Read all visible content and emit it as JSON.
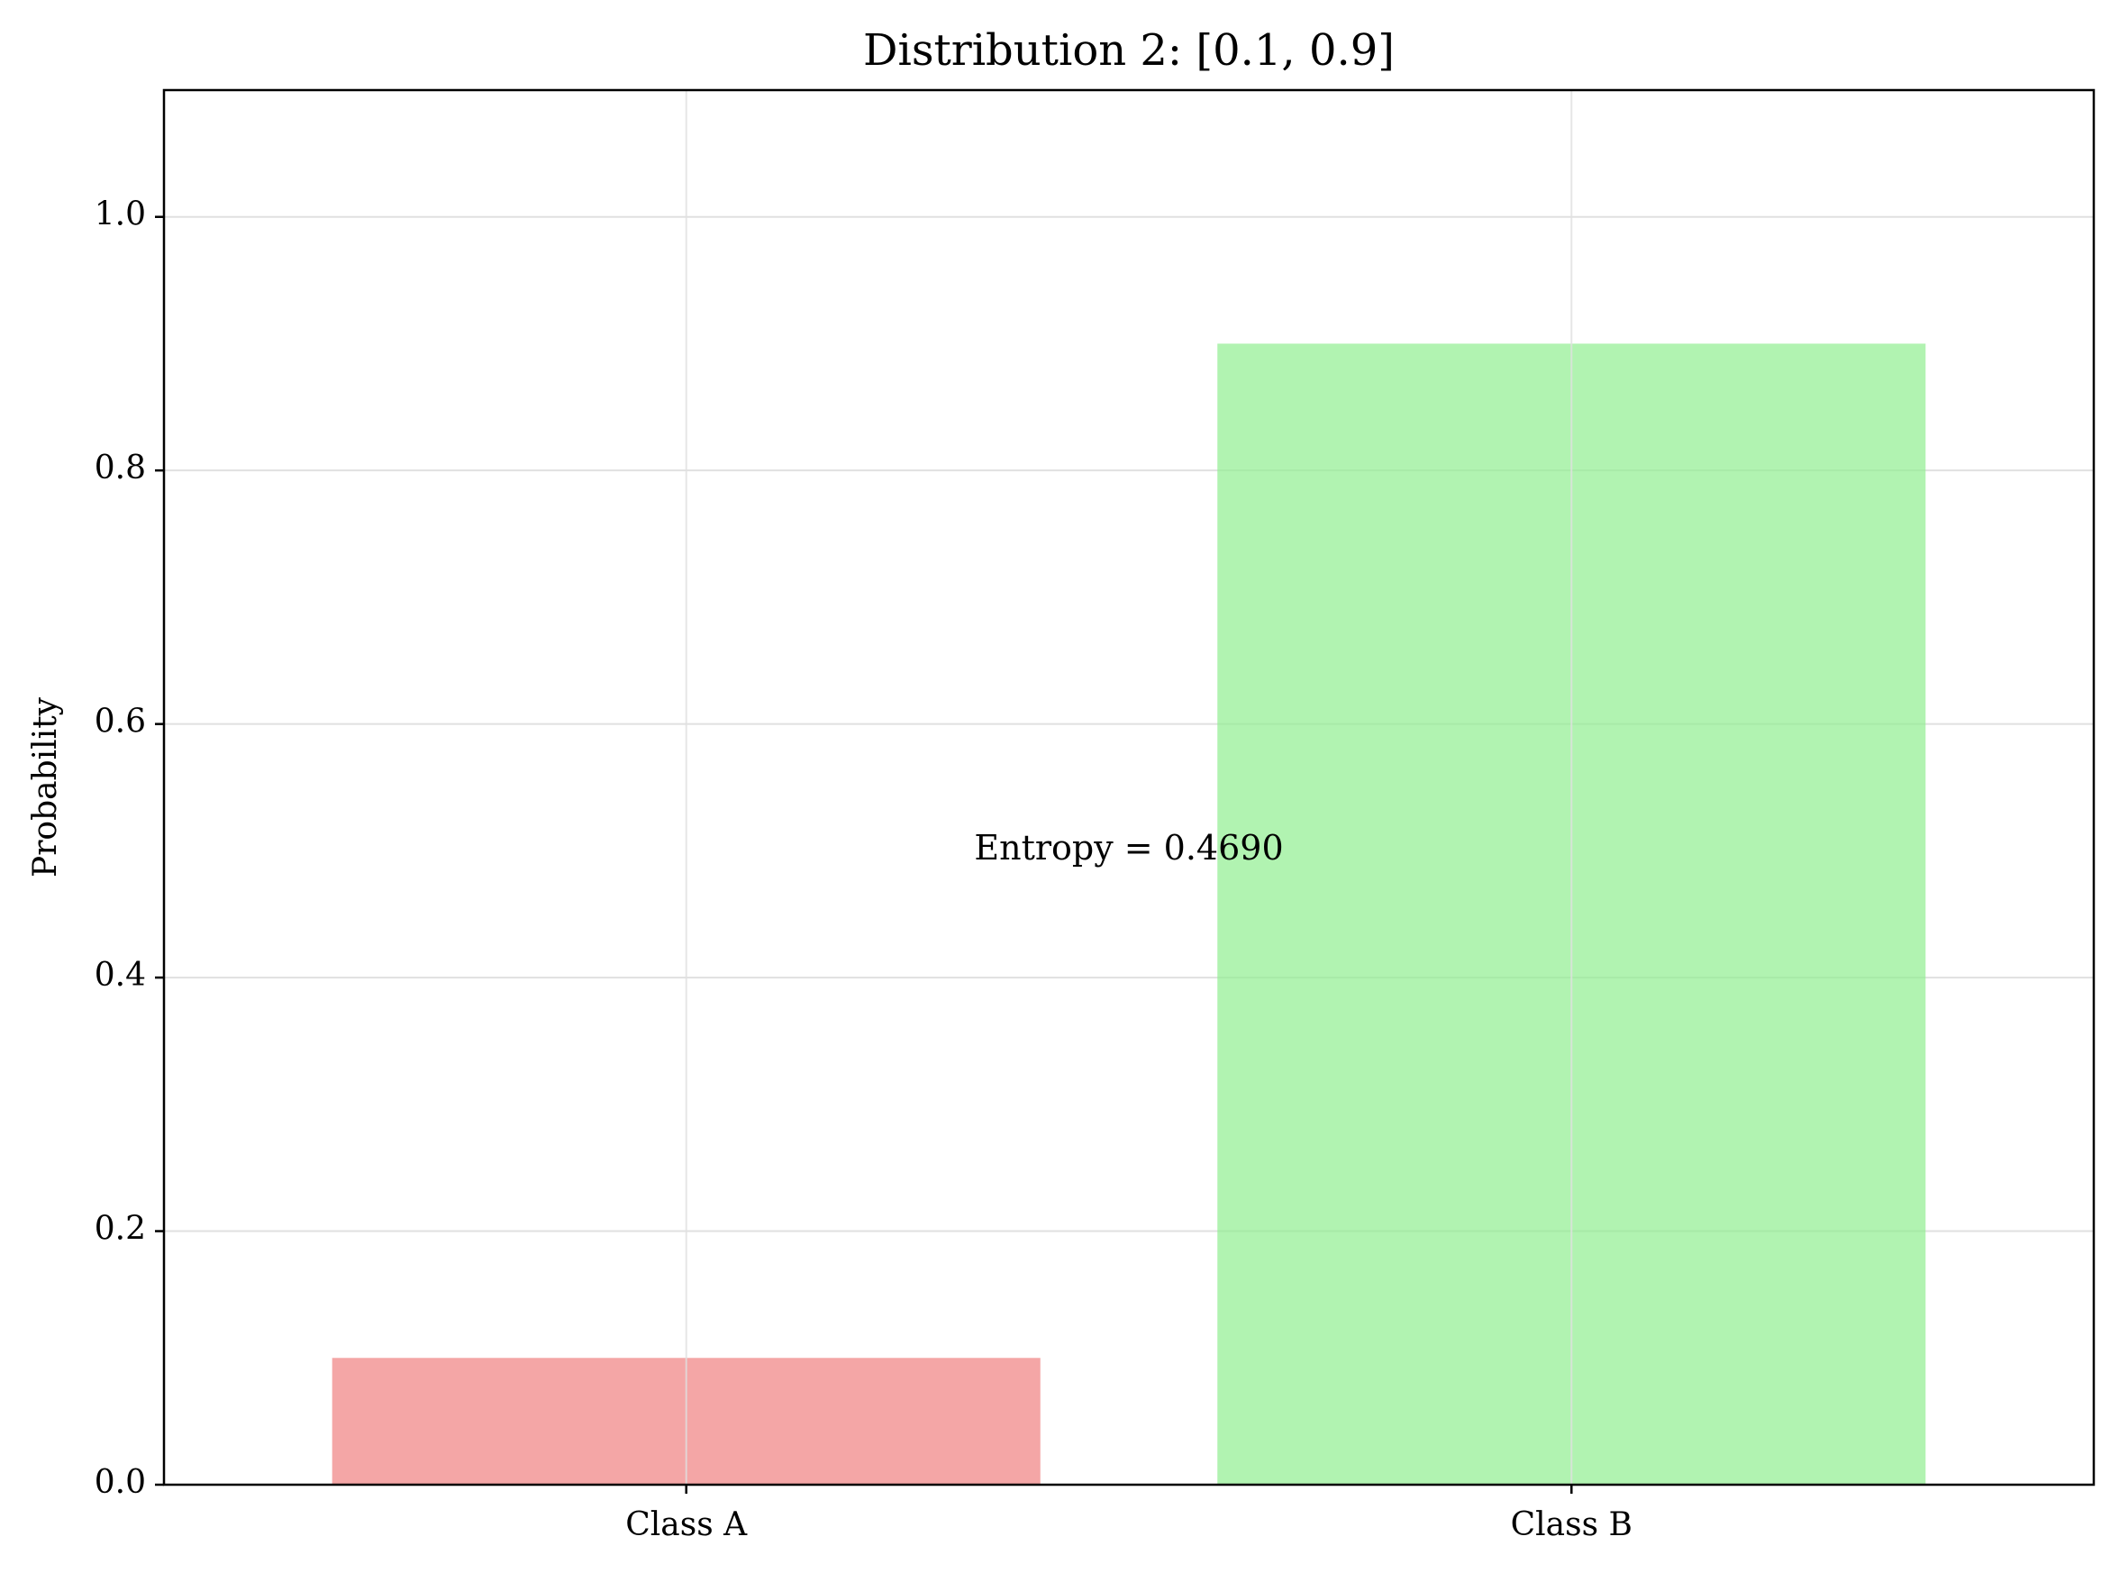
{
  "chart_data": {
    "type": "bar",
    "title": "Distribution 2: [0.1, 0.9]",
    "xlabel": "",
    "ylabel": "Probability",
    "categories": [
      "Class A",
      "Class B"
    ],
    "values": [
      0.1,
      0.9
    ],
    "colors": [
      "#f08080",
      "#90ee90"
    ],
    "bar_opacity": 0.7,
    "ylim": [
      0,
      1.1
    ],
    "yticks": [
      0.0,
      0.2,
      0.4,
      0.6,
      0.8,
      1.0
    ],
    "ytick_labels": [
      "0.0",
      "0.2",
      "0.4",
      "0.6",
      "0.8",
      "1.0"
    ],
    "grid": true,
    "grid_color": "#e0e0e0",
    "legend": "none",
    "annotation": {
      "text": "Entropy = 0.4690",
      "x_category_position": 0.5,
      "y": 0.5
    }
  }
}
